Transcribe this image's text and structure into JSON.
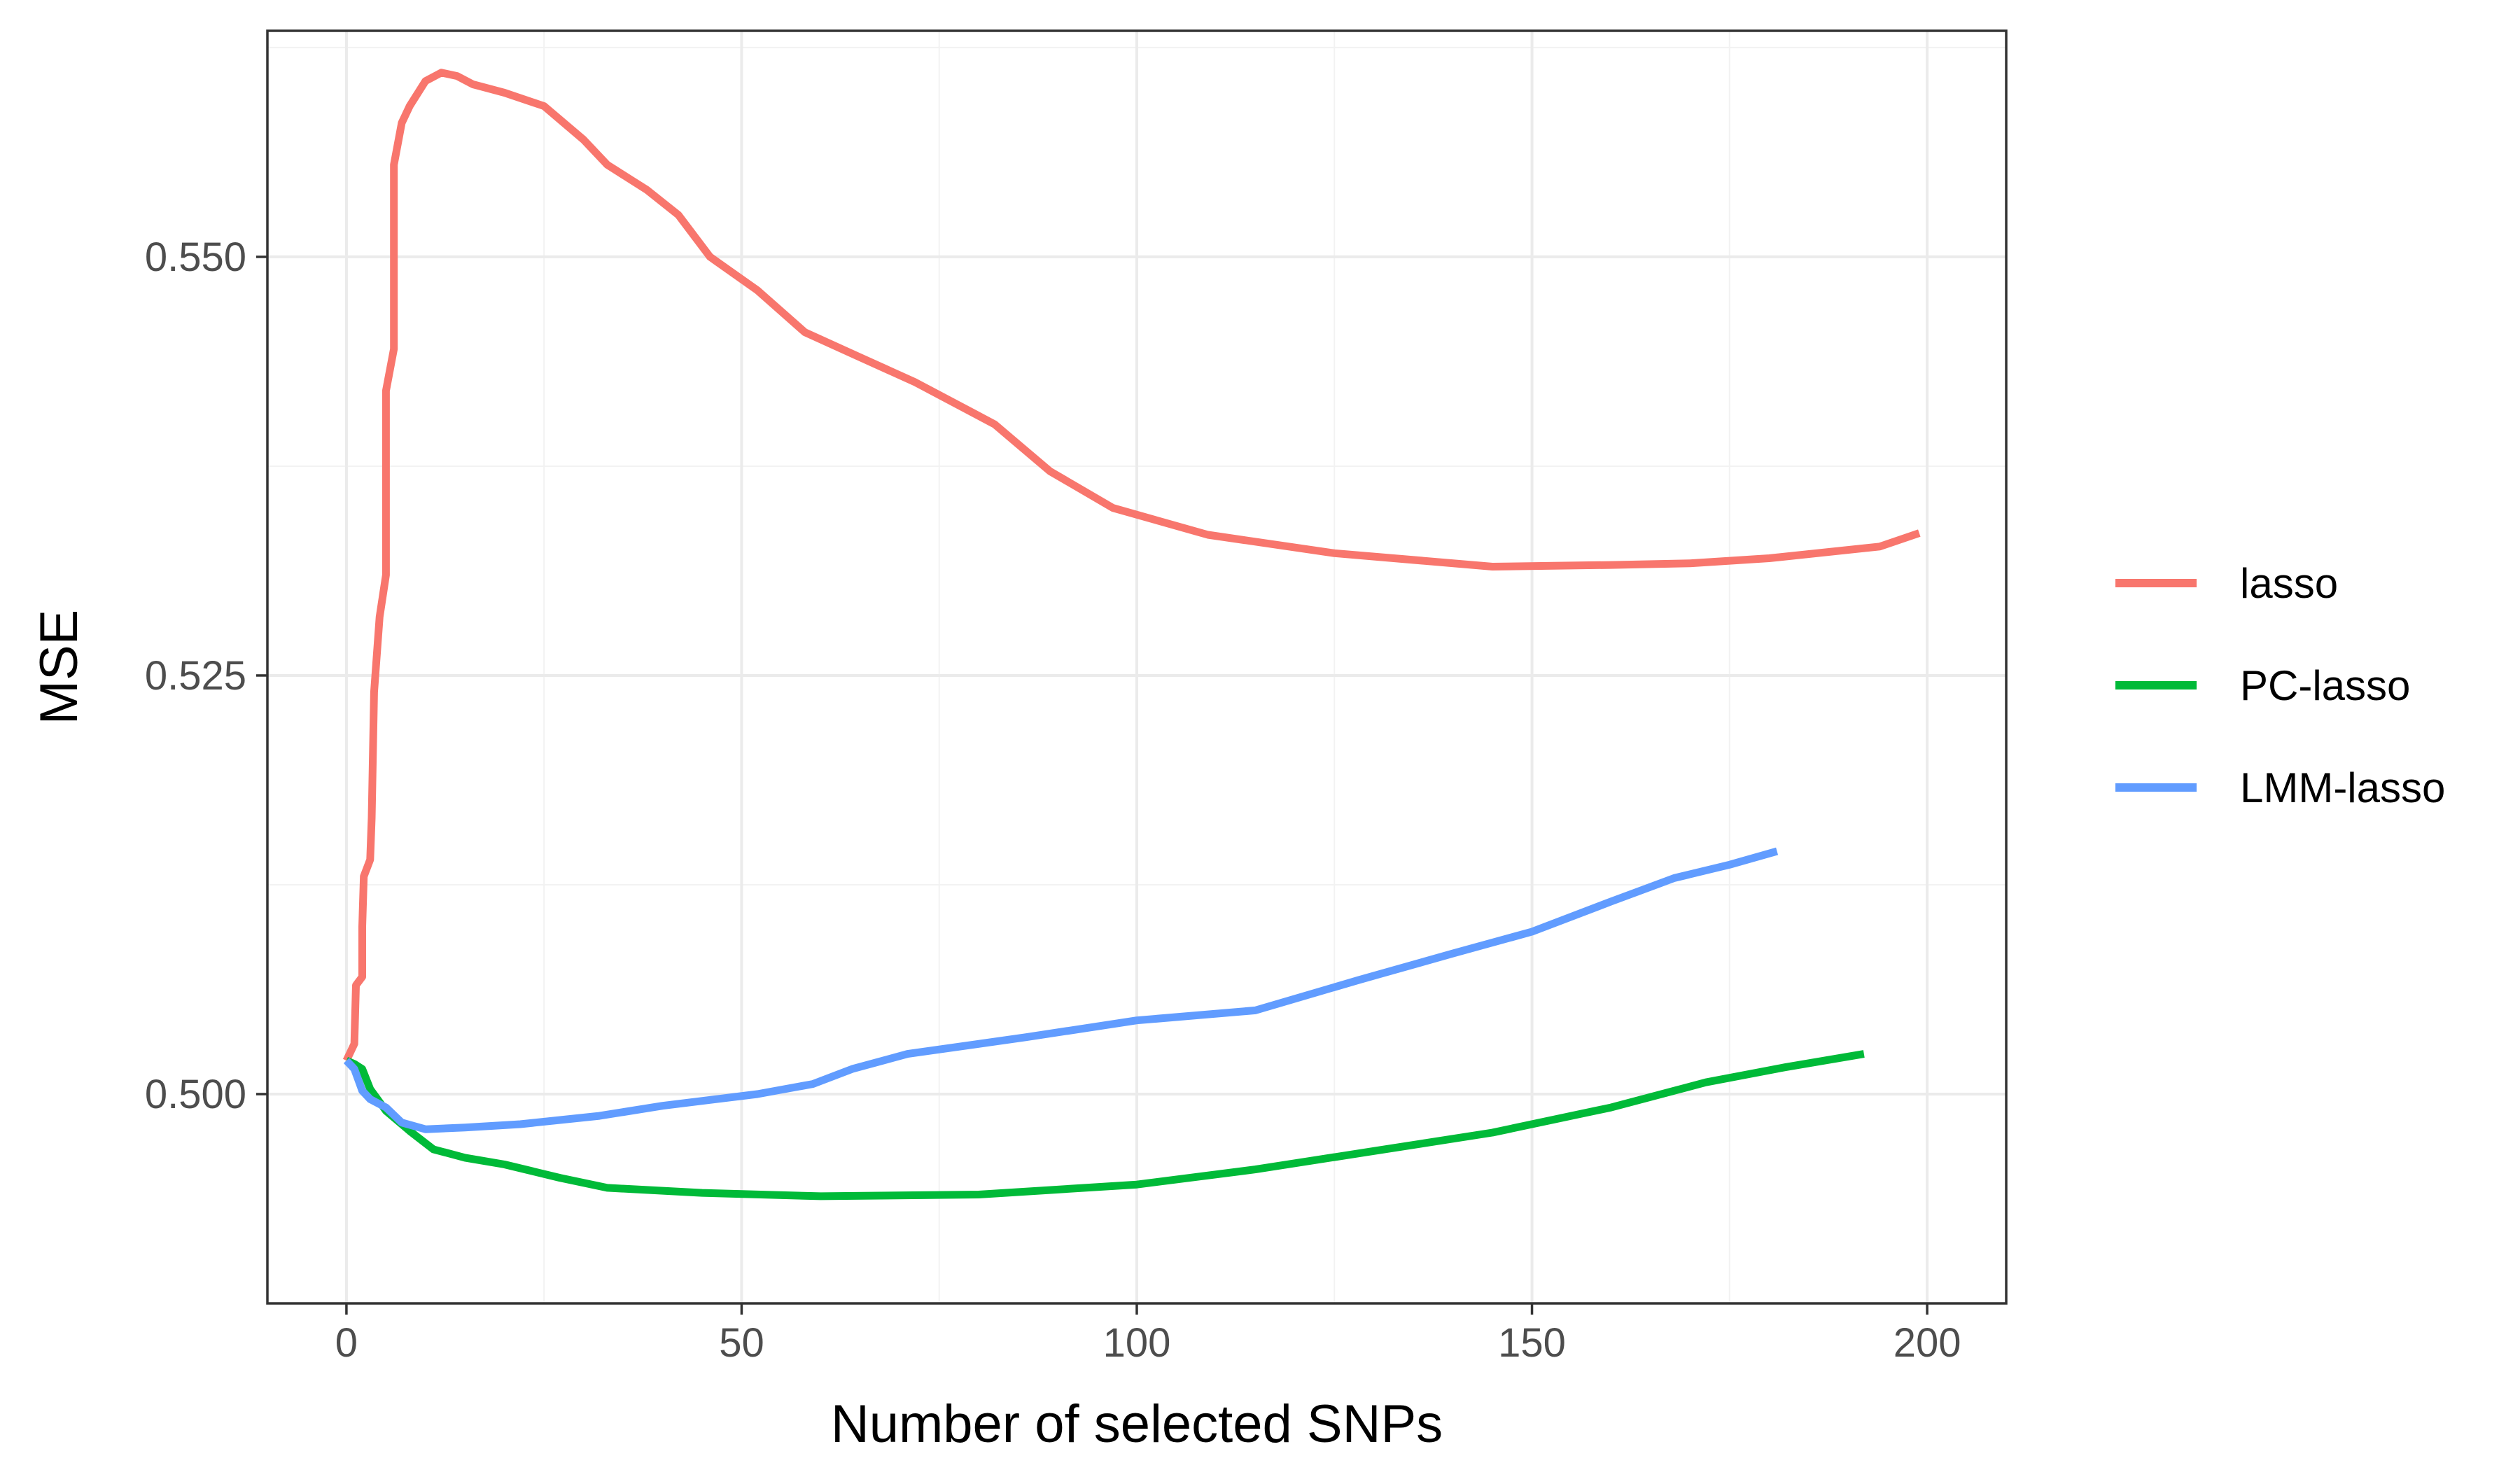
{
  "chart_data": {
    "type": "line",
    "xlabel": "Number of selected SNPs",
    "ylabel": "MSE",
    "xlim": [
      -10,
      210
    ],
    "ylim": [
      0.4875,
      0.5635
    ],
    "x_ticks": [
      0,
      50,
      100,
      150,
      200
    ],
    "y_ticks": [
      0.5,
      0.525,
      0.55
    ],
    "x_tick_labels": [
      "0",
      "50",
      "100",
      "150",
      "200"
    ],
    "y_tick_labels": [
      "0.500",
      "0.525",
      "0.550"
    ],
    "grid": true,
    "legend_position": "right",
    "series": [
      {
        "name": "lasso",
        "color": "#F8766D",
        "points": [
          [
            0,
            0.502
          ],
          [
            1,
            0.503
          ],
          [
            1.2,
            0.5065
          ],
          [
            2,
            0.507
          ],
          [
            2,
            0.51
          ],
          [
            2.2,
            0.513
          ],
          [
            3,
            0.514
          ],
          [
            3.2,
            0.5165
          ],
          [
            3.5,
            0.524
          ],
          [
            4.2,
            0.5285
          ],
          [
            5,
            0.531
          ],
          [
            5,
            0.542
          ],
          [
            6,
            0.5445
          ],
          [
            6,
            0.5555
          ],
          [
            7,
            0.558
          ],
          [
            8,
            0.559
          ],
          [
            10,
            0.5605
          ],
          [
            12,
            0.561
          ],
          [
            14,
            0.5608
          ],
          [
            16,
            0.5603
          ],
          [
            20,
            0.5598
          ],
          [
            25,
            0.559
          ],
          [
            30,
            0.557
          ],
          [
            33,
            0.5555
          ],
          [
            38,
            0.554
          ],
          [
            42,
            0.5525
          ],
          [
            46,
            0.55
          ],
          [
            52,
            0.548
          ],
          [
            58,
            0.5455
          ],
          [
            65,
            0.544
          ],
          [
            72,
            0.5425
          ],
          [
            82,
            0.54
          ],
          [
            89,
            0.5372
          ],
          [
            97,
            0.535
          ],
          [
            109,
            0.5334
          ],
          [
            125,
            0.5323
          ],
          [
            145,
            0.5315
          ],
          [
            160,
            0.5316
          ],
          [
            170,
            0.5317
          ],
          [
            180,
            0.532
          ],
          [
            194,
            0.5327
          ],
          [
            199,
            0.5335
          ]
        ]
      },
      {
        "name": "PC-lasso",
        "color": "#00BA38",
        "points": [
          [
            0,
            0.502
          ],
          [
            1,
            0.5018
          ],
          [
            2,
            0.5015
          ],
          [
            3,
            0.5003
          ],
          [
            5,
            0.499
          ],
          [
            8,
            0.4978
          ],
          [
            11,
            0.4967
          ],
          [
            15,
            0.4962
          ],
          [
            20,
            0.4958
          ],
          [
            27,
            0.495
          ],
          [
            33,
            0.4944
          ],
          [
            45,
            0.4941
          ],
          [
            60,
            0.4939
          ],
          [
            80,
            0.494
          ],
          [
            100,
            0.4946
          ],
          [
            115,
            0.4955
          ],
          [
            130,
            0.4966
          ],
          [
            145,
            0.4977
          ],
          [
            160,
            0.4992
          ],
          [
            172,
            0.5007
          ],
          [
            182,
            0.5016
          ],
          [
            192,
            0.5024
          ]
        ]
      },
      {
        "name": "LMM-lasso",
        "color": "#619CFF",
        "points": [
          [
            0,
            0.502
          ],
          [
            1,
            0.5015
          ],
          [
            2,
            0.5002
          ],
          [
            3,
            0.4997
          ],
          [
            5,
            0.4992
          ],
          [
            7,
            0.4983
          ],
          [
            10,
            0.4979
          ],
          [
            15,
            0.498
          ],
          [
            22,
            0.4982
          ],
          [
            32,
            0.4987
          ],
          [
            40,
            0.4993
          ],
          [
            52,
            0.5
          ],
          [
            59,
            0.5006
          ],
          [
            64,
            0.5015
          ],
          [
            71,
            0.5024
          ],
          [
            86,
            0.5034
          ],
          [
            100,
            0.5044
          ],
          [
            115,
            0.505
          ],
          [
            128,
            0.5068
          ],
          [
            140,
            0.5084
          ],
          [
            150,
            0.5097
          ],
          [
            160,
            0.5115
          ],
          [
            168,
            0.5129
          ],
          [
            175,
            0.5137
          ],
          [
            181,
            0.5145
          ]
        ]
      }
    ]
  }
}
